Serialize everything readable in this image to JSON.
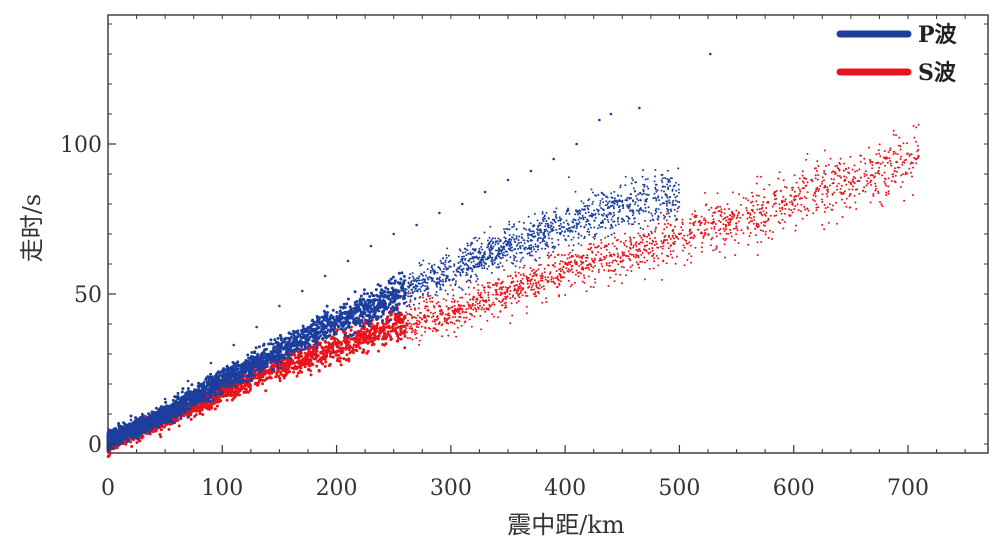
{
  "chart_data": {
    "type": "scatter",
    "title": "",
    "xlabel": "震中距/km",
    "ylabel": "走时/s",
    "xlim": [
      0,
      770
    ],
    "ylim": [
      -3,
      143
    ],
    "x_ticks": [
      0,
      100,
      200,
      300,
      400,
      500,
      600,
      700
    ],
    "y_ticks": [
      0,
      50,
      100
    ],
    "grid": false,
    "legend_position": "top-right",
    "series": [
      {
        "name": "P波",
        "color": "#1c3f9e",
        "trend": [
          [
            0,
            1
          ],
          [
            50,
            10
          ],
          [
            100,
            21
          ],
          [
            150,
            31
          ],
          [
            200,
            41
          ],
          [
            250,
            49
          ],
          [
            300,
            58
          ],
          [
            350,
            66
          ],
          [
            400,
            73
          ],
          [
            450,
            79
          ],
          [
            500,
            84
          ]
        ],
        "values": [
          [
            0,
            2
          ],
          [
            10,
            5
          ],
          [
            20,
            8
          ],
          [
            30,
            10
          ],
          [
            50,
            15
          ],
          [
            70,
            21
          ],
          [
            90,
            27
          ],
          [
            110,
            33
          ],
          [
            130,
            39
          ],
          [
            150,
            46
          ],
          [
            170,
            51
          ],
          [
            190,
            56
          ],
          [
            210,
            61
          ],
          [
            230,
            66
          ],
          [
            250,
            70
          ],
          [
            270,
            73
          ],
          [
            290,
            77
          ],
          [
            310,
            80
          ],
          [
            330,
            84
          ],
          [
            350,
            88
          ],
          [
            370,
            91
          ],
          [
            390,
            95
          ],
          [
            410,
            100
          ],
          [
            430,
            108
          ],
          [
            440,
            110
          ],
          [
            465,
            112
          ],
          [
            527,
            130
          ]
        ]
      },
      {
        "name": "S波",
        "color": "#e8141c",
        "trend": [
          [
            0,
            0
          ],
          [
            50,
            8
          ],
          [
            100,
            17
          ],
          [
            150,
            26
          ],
          [
            200,
            32
          ],
          [
            250,
            39
          ],
          [
            300,
            44
          ],
          [
            350,
            51
          ],
          [
            400,
            58
          ],
          [
            450,
            63
          ],
          [
            500,
            69
          ],
          [
            550,
            75
          ],
          [
            600,
            81
          ],
          [
            650,
            88
          ],
          [
            710,
            95
          ]
        ],
        "values": [
          [
            0,
            1
          ],
          [
            20,
            4
          ],
          [
            40,
            9
          ],
          [
            60,
            14
          ],
          [
            80,
            18
          ],
          [
            100,
            23
          ],
          [
            120,
            26
          ],
          [
            140,
            29
          ],
          [
            160,
            31
          ],
          [
            180,
            33
          ],
          [
            200,
            35
          ],
          [
            230,
            38
          ],
          [
            260,
            42
          ],
          [
            290,
            46
          ],
          [
            320,
            49
          ],
          [
            350,
            52
          ],
          [
            380,
            56
          ],
          [
            410,
            60
          ],
          [
            440,
            63
          ],
          [
            470,
            66
          ],
          [
            500,
            70
          ],
          [
            530,
            74
          ],
          [
            560,
            77
          ],
          [
            590,
            81
          ],
          [
            620,
            85
          ],
          [
            645,
            88
          ],
          [
            690,
            94
          ],
          [
            707,
            95
          ]
        ]
      }
    ]
  }
}
